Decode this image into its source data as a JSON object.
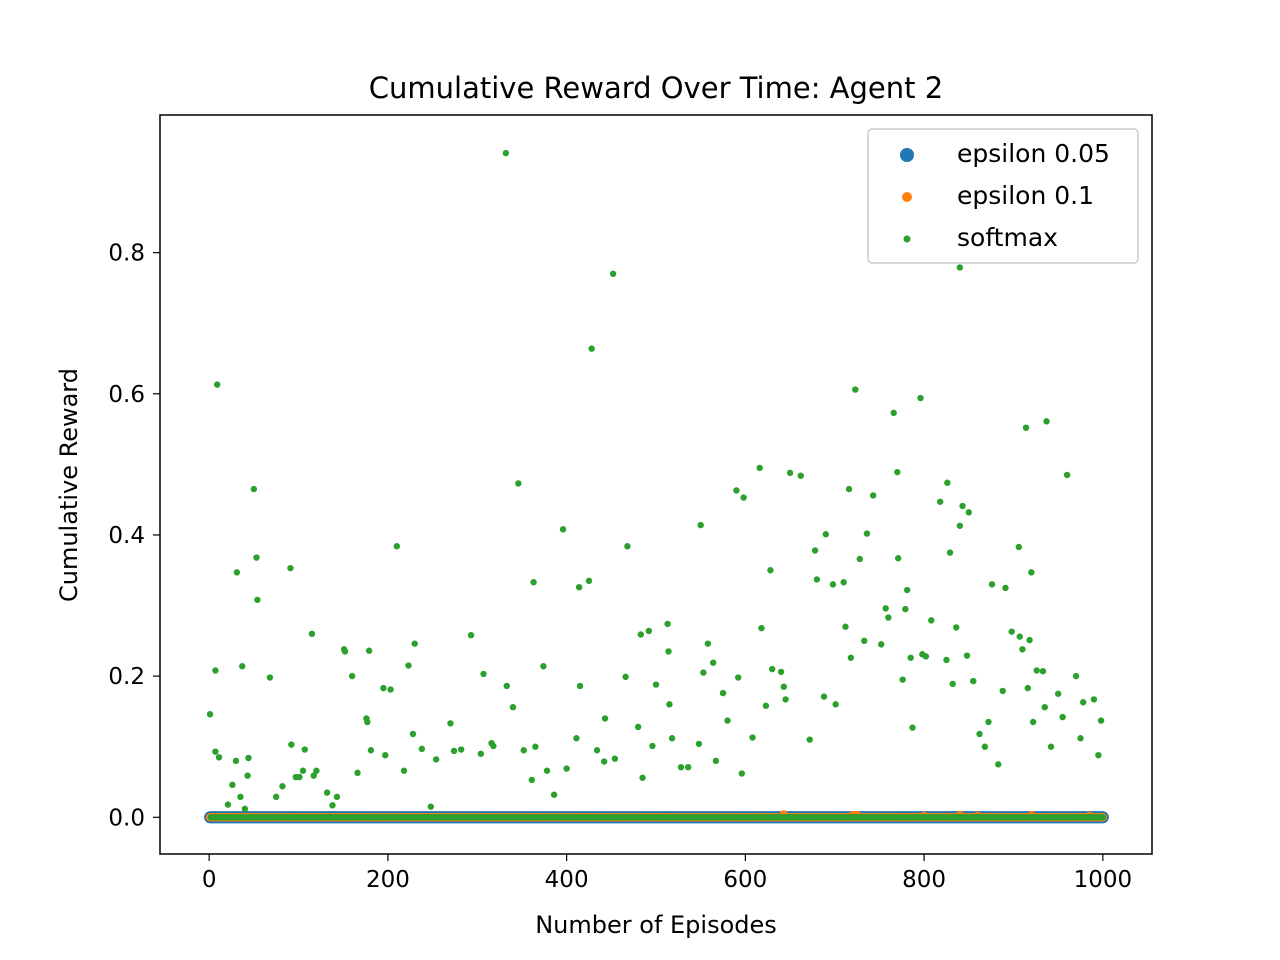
{
  "chart_data": {
    "type": "scatter",
    "title": "Cumulative Reward Over Time: Agent 2",
    "xlabel": "Number of Episodes",
    "ylabel": "Cumulative Reward",
    "xlim": [
      -55,
      1055
    ],
    "ylim": [
      -0.052,
      0.995
    ],
    "x_ticks": [
      0,
      200,
      400,
      600,
      800,
      1000
    ],
    "x_tick_labels": [
      "0",
      "200",
      "400",
      "600",
      "800",
      "1000"
    ],
    "y_ticks": [
      0.0,
      0.2,
      0.4,
      0.6,
      0.8
    ],
    "y_tick_labels": [
      "0.0",
      "0.2",
      "0.4",
      "0.6",
      "0.8"
    ],
    "grid": false,
    "legend_position": "top-right",
    "episodes": {
      "start": 1,
      "end": 1000
    },
    "series": [
      {
        "name": "epsilon 0.05",
        "color": "#1f77b4",
        "marker_size": "large",
        "baseline_value": 0.0,
        "nonzero_points": []
      },
      {
        "name": "epsilon 0.1",
        "color": "#ff7f0e",
        "marker_size": "medium",
        "baseline_value": 0.0,
        "nonzero_points": [
          [
            643,
            0.004
          ],
          [
            720,
            0.003
          ],
          [
            725,
            0.003
          ],
          [
            800,
            0.002
          ],
          [
            840,
            0.003
          ],
          [
            860,
            0.002
          ],
          [
            920,
            0.003
          ],
          [
            985,
            0.002
          ]
        ]
      },
      {
        "name": "softmax",
        "color": "#2ca02c",
        "marker_size": "small",
        "baseline_value": 0.0,
        "nonzero_points": [
          [
            1,
            0.146
          ],
          [
            7,
            0.208
          ],
          [
            7,
            0.093
          ],
          [
            9,
            0.613
          ],
          [
            11,
            0.085
          ],
          [
            21,
            0.018
          ],
          [
            26,
            0.046
          ],
          [
            30,
            0.08
          ],
          [
            31,
            0.347
          ],
          [
            35,
            0.029
          ],
          [
            37,
            0.214
          ],
          [
            40,
            0.012
          ],
          [
            43,
            0.059
          ],
          [
            44,
            0.084
          ],
          [
            50,
            0.465
          ],
          [
            53,
            0.368
          ],
          [
            54,
            0.308
          ],
          [
            68,
            0.198
          ],
          [
            75,
            0.029
          ],
          [
            82,
            0.044
          ],
          [
            91,
            0.353
          ],
          [
            92,
            0.103
          ],
          [
            97,
            0.057
          ],
          [
            101,
            0.057
          ],
          [
            105,
            0.066
          ],
          [
            107,
            0.096
          ],
          [
            115,
            0.26
          ],
          [
            117,
            0.059
          ],
          [
            120,
            0.066
          ],
          [
            132,
            0.035
          ],
          [
            138,
            0.017
          ],
          [
            143,
            0.029
          ],
          [
            151,
            0.238
          ],
          [
            152,
            0.235
          ],
          [
            160,
            0.2
          ],
          [
            166,
            0.063
          ],
          [
            176,
            0.14
          ],
          [
            177,
            0.135
          ],
          [
            179,
            0.236
          ],
          [
            181,
            0.095
          ],
          [
            195,
            0.183
          ],
          [
            197,
            0.088
          ],
          [
            203,
            0.181
          ],
          [
            210,
            0.384
          ],
          [
            218,
            0.066
          ],
          [
            223,
            0.215
          ],
          [
            228,
            0.118
          ],
          [
            230,
            0.246
          ],
          [
            238,
            0.097
          ],
          [
            248,
            0.015
          ],
          [
            254,
            0.082
          ],
          [
            270,
            0.133
          ],
          [
            274,
            0.094
          ],
          [
            282,
            0.096
          ],
          [
            293,
            0.258
          ],
          [
            304,
            0.09
          ],
          [
            307,
            0.203
          ],
          [
            316,
            0.105
          ],
          [
            318,
            0.101
          ],
          [
            332,
            0.941
          ],
          [
            333,
            0.186
          ],
          [
            340,
            0.156
          ],
          [
            346,
            0.473
          ],
          [
            352,
            0.095
          ],
          [
            361,
            0.053
          ],
          [
            363,
            0.333
          ],
          [
            365,
            0.1
          ],
          [
            374,
            0.214
          ],
          [
            378,
            0.066
          ],
          [
            386,
            0.032
          ],
          [
            396,
            0.408
          ],
          [
            400,
            0.069
          ],
          [
            411,
            0.112
          ],
          [
            414,
            0.326
          ],
          [
            415,
            0.186
          ],
          [
            425,
            0.335
          ],
          [
            428,
            0.664
          ],
          [
            434,
            0.095
          ],
          [
            442,
            0.079
          ],
          [
            443,
            0.14
          ],
          [
            452,
            0.77
          ],
          [
            454,
            0.083
          ],
          [
            466,
            0.199
          ],
          [
            468,
            0.384
          ],
          [
            480,
            0.128
          ],
          [
            483,
            0.259
          ],
          [
            485,
            0.056
          ],
          [
            492,
            0.264
          ],
          [
            496,
            0.101
          ],
          [
            500,
            0.188
          ],
          [
            513,
            0.274
          ],
          [
            514,
            0.235
          ],
          [
            515,
            0.16
          ],
          [
            518,
            0.112
          ],
          [
            528,
            0.071
          ],
          [
            536,
            0.071
          ],
          [
            548,
            0.104
          ],
          [
            550,
            0.414
          ],
          [
            553,
            0.205
          ],
          [
            558,
            0.246
          ],
          [
            564,
            0.219
          ],
          [
            567,
            0.08
          ],
          [
            575,
            0.176
          ],
          [
            580,
            0.137
          ],
          [
            590,
            0.463
          ],
          [
            592,
            0.198
          ],
          [
            596,
            0.062
          ],
          [
            598,
            0.453
          ],
          [
            608,
            0.113
          ],
          [
            616,
            0.495
          ],
          [
            618,
            0.268
          ],
          [
            623,
            0.158
          ],
          [
            628,
            0.35
          ],
          [
            630,
            0.21
          ],
          [
            640,
            0.206
          ],
          [
            643,
            0.185
          ],
          [
            645,
            0.167
          ],
          [
            650,
            0.488
          ],
          [
            662,
            0.484
          ],
          [
            672,
            0.11
          ],
          [
            678,
            0.378
          ],
          [
            680,
            0.337
          ],
          [
            688,
            0.171
          ],
          [
            690,
            0.401
          ],
          [
            698,
            0.33
          ],
          [
            701,
            0.16
          ],
          [
            710,
            0.333
          ],
          [
            712,
            0.27
          ],
          [
            716,
            0.465
          ],
          [
            718,
            0.226
          ],
          [
            723,
            0.606
          ],
          [
            728,
            0.366
          ],
          [
            733,
            0.25
          ],
          [
            736,
            0.402
          ],
          [
            743,
            0.456
          ],
          [
            752,
            0.245
          ],
          [
            757,
            0.296
          ],
          [
            760,
            0.283
          ],
          [
            766,
            0.573
          ],
          [
            770,
            0.489
          ],
          [
            771,
            0.367
          ],
          [
            776,
            0.195
          ],
          [
            779,
            0.295
          ],
          [
            781,
            0.322
          ],
          [
            785,
            0.226
          ],
          [
            787,
            0.127
          ],
          [
            796,
            0.594
          ],
          [
            798,
            0.231
          ],
          [
            802,
            0.228
          ],
          [
            808,
            0.279
          ],
          [
            818,
            0.447
          ],
          [
            825,
            0.223
          ],
          [
            826,
            0.474
          ],
          [
            829,
            0.375
          ],
          [
            832,
            0.189
          ],
          [
            836,
            0.269
          ],
          [
            840,
            0.779
          ],
          [
            840,
            0.413
          ],
          [
            843,
            0.441
          ],
          [
            848,
            0.229
          ],
          [
            850,
            0.432
          ],
          [
            855,
            0.193
          ],
          [
            862,
            0.118
          ],
          [
            868,
            0.1
          ],
          [
            872,
            0.135
          ],
          [
            876,
            0.33
          ],
          [
            883,
            0.075
          ],
          [
            888,
            0.179
          ],
          [
            891,
            0.325
          ],
          [
            898,
            0.263
          ],
          [
            906,
            0.383
          ],
          [
            907,
            0.256
          ],
          [
            910,
            0.238
          ],
          [
            914,
            0.552
          ],
          [
            916,
            0.183
          ],
          [
            918,
            0.251
          ],
          [
            920,
            0.347
          ],
          [
            922,
            0.135
          ],
          [
            926,
            0.208
          ],
          [
            933,
            0.207
          ],
          [
            935,
            0.156
          ],
          [
            937,
            0.561
          ],
          [
            942,
            0.1
          ],
          [
            950,
            0.175
          ],
          [
            955,
            0.142
          ],
          [
            960,
            0.485
          ],
          [
            970,
            0.2
          ],
          [
            975,
            0.112
          ],
          [
            978,
            0.163
          ],
          [
            990,
            0.167
          ],
          [
            995,
            0.088
          ],
          [
            998,
            0.137
          ]
        ]
      }
    ]
  }
}
